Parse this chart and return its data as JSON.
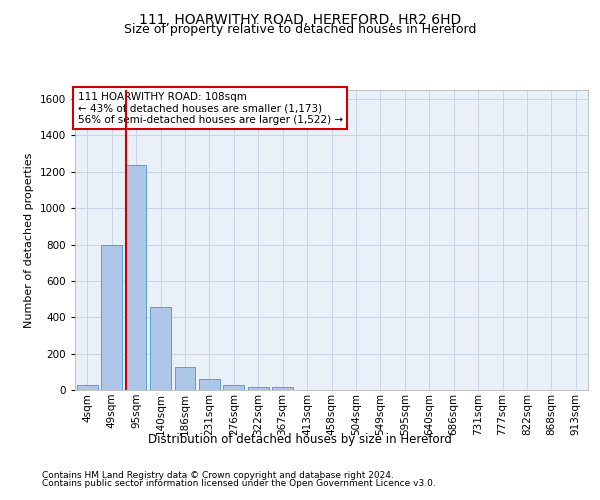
{
  "title_line1": "111, HOARWITHY ROAD, HEREFORD, HR2 6HD",
  "title_line2": "Size of property relative to detached houses in Hereford",
  "xlabel": "Distribution of detached houses by size in Hereford",
  "ylabel": "Number of detached properties",
  "bar_labels": [
    "4sqm",
    "49sqm",
    "95sqm",
    "140sqm",
    "186sqm",
    "231sqm",
    "276sqm",
    "322sqm",
    "367sqm",
    "413sqm",
    "458sqm",
    "504sqm",
    "549sqm",
    "595sqm",
    "640sqm",
    "686sqm",
    "731sqm",
    "777sqm",
    "822sqm",
    "868sqm",
    "913sqm"
  ],
  "bar_values": [
    25,
    800,
    1240,
    455,
    125,
    58,
    27,
    18,
    14,
    0,
    0,
    0,
    0,
    0,
    0,
    0,
    0,
    0,
    0,
    0,
    0
  ],
  "bar_color": "#aec6e8",
  "bar_edge_color": "#5a9fd4",
  "vline_x_index": 2,
  "vline_color": "#cc0000",
  "ylim": [
    0,
    1650
  ],
  "yticks": [
    0,
    200,
    400,
    600,
    800,
    1000,
    1200,
    1400,
    1600
  ],
  "annotation_text": "111 HOARWITHY ROAD: 108sqm\n← 43% of detached houses are smaller (1,173)\n56% of semi-detached houses are larger (1,522) →",
  "annotation_box_color": "#ffffff",
  "annotation_box_edge": "#cc0000",
  "grid_color": "#c8d4e8",
  "bg_color": "#eaf0f8",
  "footer_line1": "Contains HM Land Registry data © Crown copyright and database right 2024.",
  "footer_line2": "Contains public sector information licensed under the Open Government Licence v3.0.",
  "title_fontsize": 10,
  "subtitle_fontsize": 9,
  "ylabel_fontsize": 8,
  "xlabel_fontsize": 8.5,
  "tick_fontsize": 7.5,
  "annot_fontsize": 7.5,
  "footer_fontsize": 6.5
}
